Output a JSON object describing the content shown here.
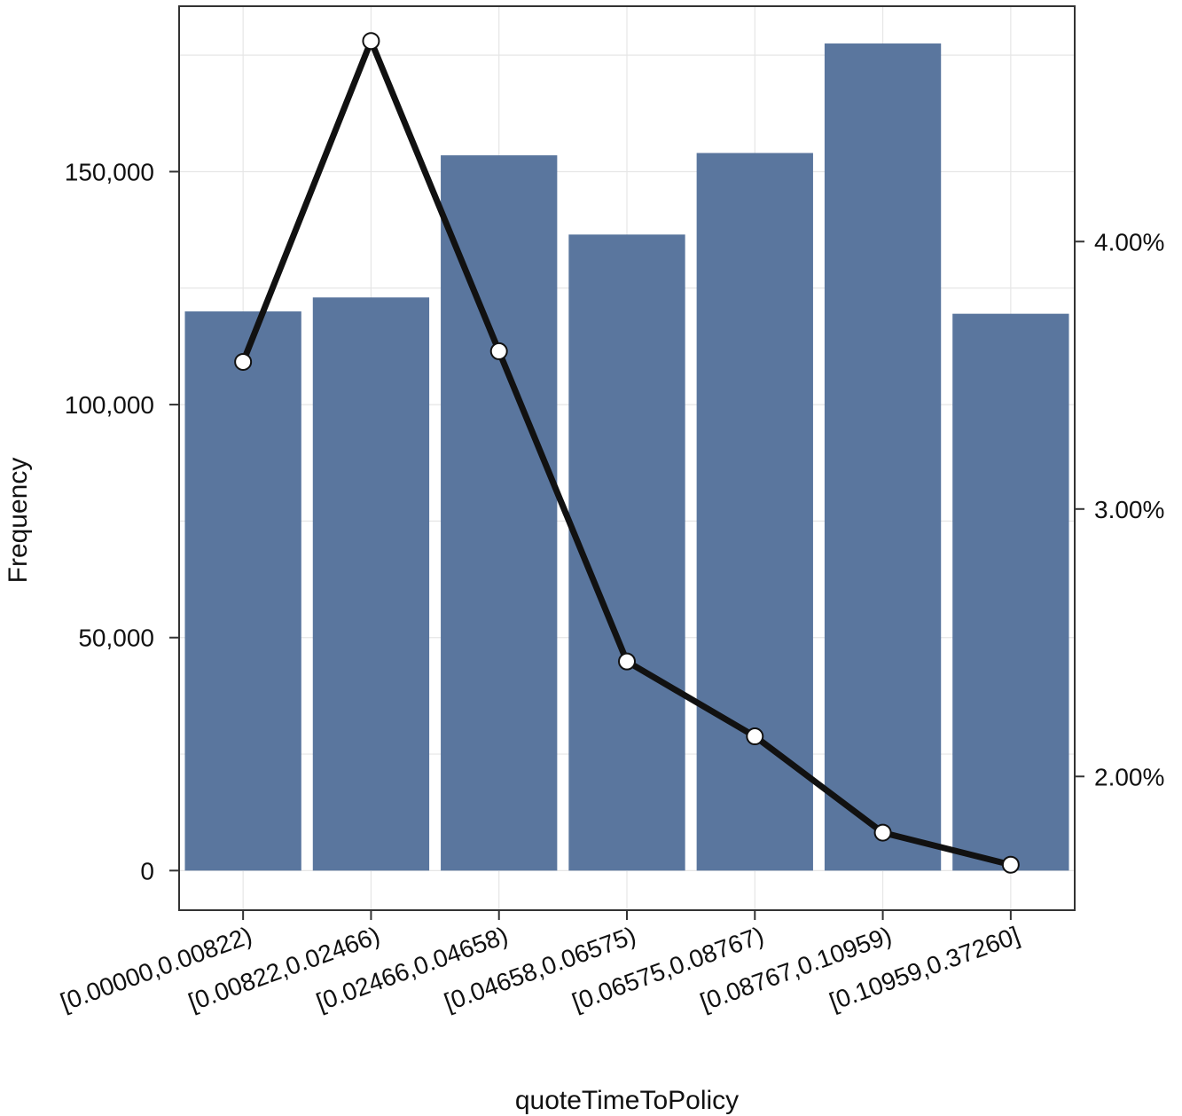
{
  "chart_data": {
    "type": "bar",
    "xlabel": "quoteTimeToPolicy",
    "ylabel": "Frequency",
    "categories": [
      "[0.00000,0.00822)",
      "[0.00822,0.02466)",
      "[0.02466,0.04658)",
      "[0.04658,0.06575)",
      "[0.06575,0.08767)",
      "[0.08767,0.10959)",
      "[0.10959,0.37260]"
    ],
    "series": [
      {
        "type": "bar",
        "axis": "left",
        "values": [
          120000,
          123000,
          153500,
          136500,
          154000,
          177500,
          119500
        ]
      },
      {
        "type": "line",
        "axis": "right",
        "values": [
          3.55,
          4.75,
          3.59,
          2.43,
          2.15,
          1.79,
          1.67
        ]
      }
    ],
    "ylim": [
      -8500,
      185500
    ],
    "yticks": [
      0,
      50000,
      100000,
      150000
    ],
    "ytick_labels": [
      "0",
      "50,000",
      "100,000",
      "150,000"
    ],
    "y2lim": [
      1.5,
      4.88
    ],
    "y2ticks": [
      2.0,
      3.0,
      4.0
    ],
    "y2tick_labels": [
      "2.00%",
      "3.00%",
      "4.00%"
    ],
    "grid": true,
    "colors": {
      "bar": "#5a769e",
      "line": "#111111",
      "marker_fill": "#ffffff",
      "grid": "#e6e6e6",
      "frame": "#333333"
    }
  }
}
